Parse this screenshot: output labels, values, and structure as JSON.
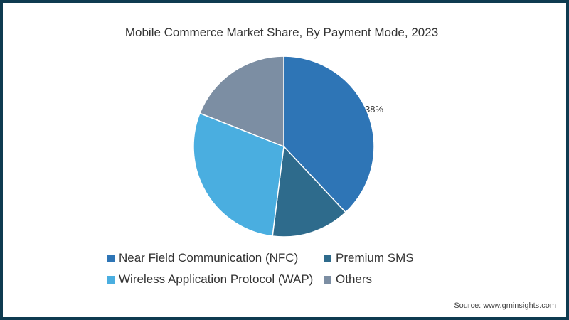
{
  "chart_data": {
    "type": "pie",
    "title": "Mobile Commerce Market Share, By Payment Mode, 2023",
    "categories": [
      "Near Field Communication (NFC)",
      "Premium SMS",
      "Wireless Application Protocol (WAP)",
      "Others"
    ],
    "values": [
      38,
      14,
      29,
      19
    ],
    "colors": [
      "#2e75b6",
      "#2e6b8c",
      "#4aaee0",
      "#7c8ea3"
    ],
    "data_labels": [
      "38%"
    ],
    "legend_position": "bottom"
  },
  "title": "Mobile Commerce Market Share, By Payment Mode, 2023",
  "label_nfc": "38%",
  "legend": [
    {
      "label": "Near Field Communication (NFC)",
      "color": "#2e75b6"
    },
    {
      "label": "Premium SMS",
      "color": "#2e6b8c"
    },
    {
      "label": "Wireless Application Protocol (WAP)",
      "color": "#4aaee0"
    },
    {
      "label": "Others",
      "color": "#7c8ea3"
    }
  ],
  "source": "Source: www.gminsights.com"
}
